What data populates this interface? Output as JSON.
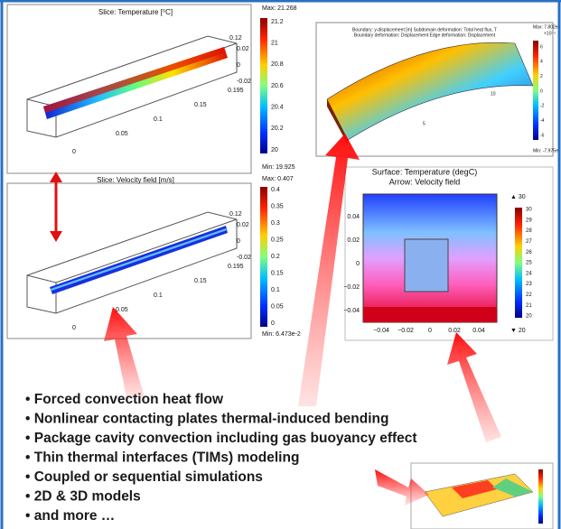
{
  "panels": [
    {
      "title": "Slice: Temperature [⁰C]",
      "max": "Max: 21.268",
      "min": "Min: 19.925",
      "colorbar_ticks": [
        "21.2",
        "21",
        "20.8",
        "20.6",
        "20.4",
        "20.2",
        "20"
      ],
      "axis_labels": [
        "0.12",
        "0.02",
        "0",
        "-0.02",
        "0.195",
        "0.15",
        "0.1",
        "0.05",
        "0"
      ]
    },
    {
      "title": "Slice: Velocity field [m/s]",
      "max": "Max: 0.407",
      "min": "Min: 6.473e-2",
      "colorbar_ticks": [
        "0.4",
        "0.35",
        "0.3",
        "0.25",
        "0.2",
        "0.15",
        "0.1",
        "0.05",
        "0"
      ],
      "axis_labels": [
        "0.12",
        "0.02",
        "0",
        "-0.02",
        "0.195",
        "0.15",
        "0.1",
        "0.05",
        "0"
      ]
    },
    {
      "title": [
        "Boundary: y-displacement [m]   Subdomain deformation: Total heat flux, T",
        "Boundary deformation: Displacement   Edge deformation: Displacement"
      ],
      "max": "Max: 7.802e-",
      "min": "Min: -7.975e",
      "exponent": "×10⁻⁵",
      "colorbar_ticks": [
        "6",
        "4",
        "2",
        "0",
        "-2",
        "-4",
        "-6"
      ],
      "axis_labels": [
        "10",
        "5"
      ]
    },
    {
      "title": [
        "Surface: Temperature (degC)",
        "Arrow: Velocity field"
      ],
      "max": "▲ 30",
      "min": "▼ 20",
      "colorbar_ticks": [
        "30",
        "29",
        "28",
        "27",
        "26",
        "25",
        "24",
        "23",
        "22",
        "21",
        "20"
      ],
      "y_ticks": [
        "0.04",
        "0.02",
        "0",
        "−0.02",
        "−0.04"
      ],
      "x_ticks": [
        "−0.04",
        "−0.02",
        "0",
        "0.02",
        "0.04"
      ]
    }
  ],
  "bullets": [
    "• Forced convection heat flow",
    "• Nonlinear contacting plates thermal-induced bending",
    "• Package cavity convection including gas buoyancy effect",
    "• Thin thermal interfaces (TIMs) modeling",
    "• Coupled or sequential simulations",
    "• 2D & 3D models",
    "• and more …"
  ]
}
